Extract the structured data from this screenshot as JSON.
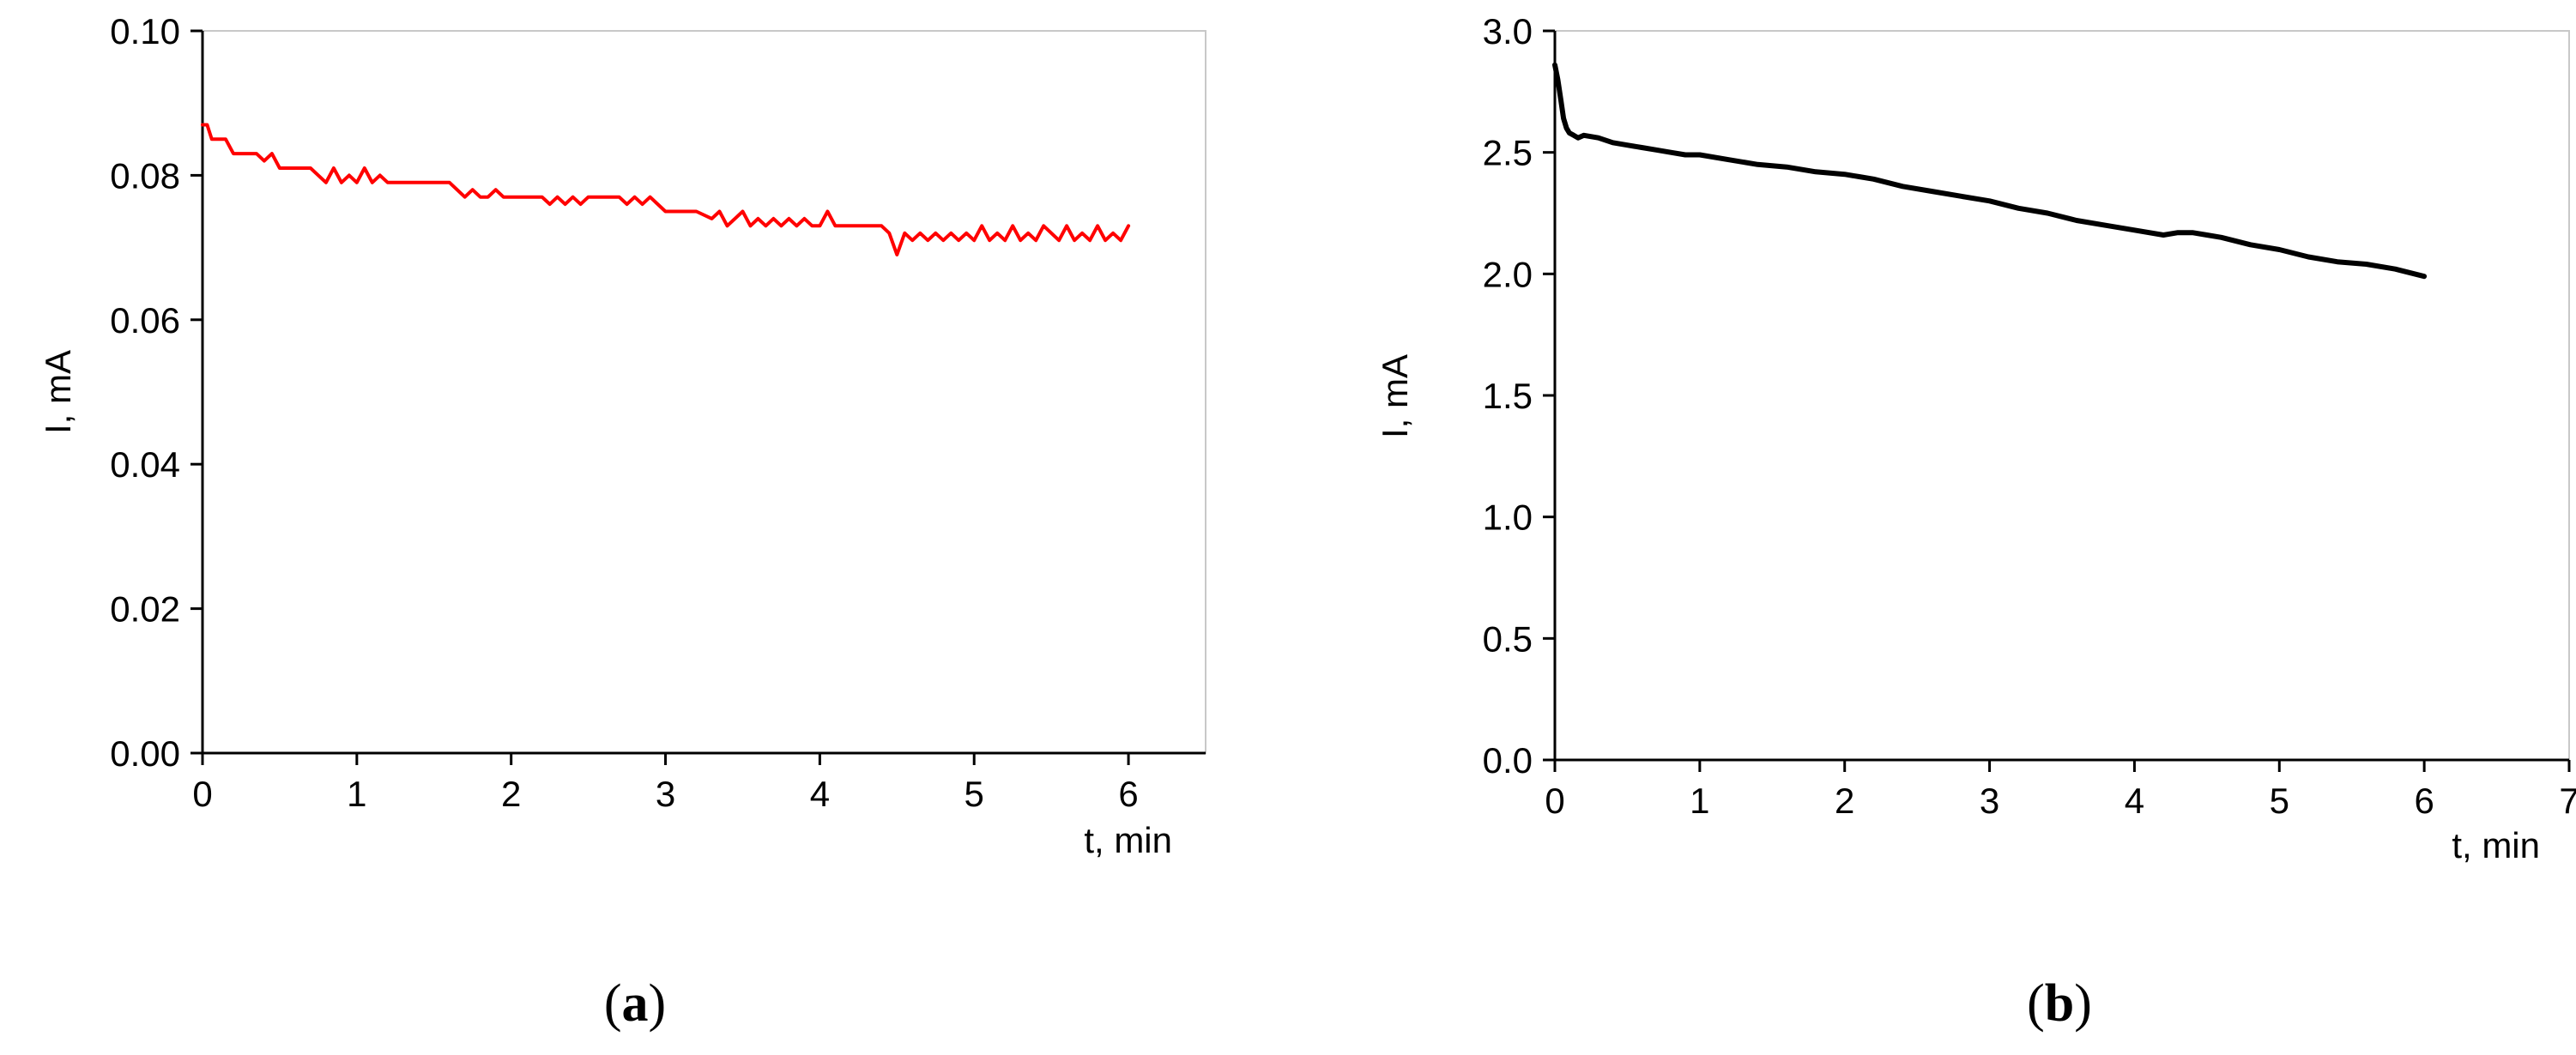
{
  "chart_data": [
    {
      "type": "line",
      "panel_label_open": "(",
      "panel_label_letter": "a",
      "panel_label_close": ")",
      "xlabel": "t, min",
      "ylabel": "I, mA",
      "xlim": [
        0,
        6.5
      ],
      "ylim": [
        0,
        0.1
      ],
      "xticks": [
        0,
        1,
        2,
        3,
        4,
        5,
        6
      ],
      "yticks": [
        0.0,
        0.02,
        0.04,
        0.06,
        0.08,
        0.1
      ],
      "xtick_labels": [
        "0",
        "1",
        "2",
        "3",
        "4",
        "5",
        "6"
      ],
      "ytick_labels": [
        "0.00",
        "0.02",
        "0.04",
        "0.06",
        "0.08",
        "0.10"
      ],
      "grid": false,
      "series": [
        {
          "color": "#ff0000",
          "x": [
            0.0,
            0.03,
            0.06,
            0.1,
            0.15,
            0.2,
            0.25,
            0.3,
            0.35,
            0.4,
            0.45,
            0.5,
            0.55,
            0.6,
            0.7,
            0.75,
            0.8,
            0.85,
            0.9,
            0.95,
            1.0,
            1.05,
            1.1,
            1.15,
            1.2,
            1.3,
            1.4,
            1.5,
            1.6,
            1.65,
            1.7,
            1.75,
            1.8,
            1.85,
            1.9,
            1.95,
            2.0,
            2.1,
            2.2,
            2.25,
            2.3,
            2.35,
            2.4,
            2.45,
            2.5,
            2.6,
            2.7,
            2.75,
            2.8,
            2.85,
            2.9,
            3.0,
            3.1,
            3.2,
            3.3,
            3.35,
            3.4,
            3.45,
            3.5,
            3.55,
            3.6,
            3.65,
            3.7,
            3.75,
            3.8,
            3.85,
            3.9,
            3.95,
            4.0,
            4.05,
            4.1,
            4.2,
            4.3,
            4.4,
            4.45,
            4.5,
            4.55,
            4.6,
            4.65,
            4.7,
            4.75,
            4.8,
            4.85,
            4.9,
            4.95,
            5.0,
            5.05,
            5.1,
            5.15,
            5.2,
            5.25,
            5.3,
            5.35,
            5.4,
            5.45,
            5.5,
            5.55,
            5.6,
            5.65,
            5.7,
            5.75,
            5.8,
            5.85,
            5.9,
            5.95,
            6.0
          ],
          "y": [
            0.087,
            0.087,
            0.085,
            0.085,
            0.085,
            0.083,
            0.083,
            0.083,
            0.083,
            0.082,
            0.083,
            0.081,
            0.081,
            0.081,
            0.081,
            0.08,
            0.079,
            0.081,
            0.079,
            0.08,
            0.079,
            0.081,
            0.079,
            0.08,
            0.079,
            0.079,
            0.079,
            0.079,
            0.079,
            0.078,
            0.077,
            0.078,
            0.077,
            0.077,
            0.078,
            0.077,
            0.077,
            0.077,
            0.077,
            0.076,
            0.077,
            0.076,
            0.077,
            0.076,
            0.077,
            0.077,
            0.077,
            0.076,
            0.077,
            0.076,
            0.077,
            0.075,
            0.075,
            0.075,
            0.074,
            0.075,
            0.073,
            0.074,
            0.075,
            0.073,
            0.074,
            0.073,
            0.074,
            0.073,
            0.074,
            0.073,
            0.074,
            0.073,
            0.073,
            0.075,
            0.073,
            0.073,
            0.073,
            0.073,
            0.072,
            0.069,
            0.072,
            0.071,
            0.072,
            0.071,
            0.072,
            0.071,
            0.072,
            0.071,
            0.072,
            0.071,
            0.073,
            0.071,
            0.072,
            0.071,
            0.073,
            0.071,
            0.072,
            0.071,
            0.073,
            0.072,
            0.071,
            0.073,
            0.071,
            0.072,
            0.071,
            0.073,
            0.071,
            0.072,
            0.071,
            0.073
          ]
        }
      ]
    },
    {
      "type": "line",
      "panel_label_open": "(",
      "panel_label_letter": "b",
      "panel_label_close": ")",
      "xlabel": "t, min",
      "ylabel": "I, mA",
      "xlim": [
        0,
        7
      ],
      "ylim": [
        0,
        3.0
      ],
      "xticks": [
        0,
        1,
        2,
        3,
        4,
        5,
        6,
        7
      ],
      "yticks": [
        0.0,
        0.5,
        1.0,
        1.5,
        2.0,
        2.5,
        3.0
      ],
      "xtick_labels": [
        "0",
        "1",
        "2",
        "3",
        "4",
        "5",
        "6",
        "7"
      ],
      "ytick_labels": [
        "0.0",
        "0.5",
        "1.0",
        "1.5",
        "2.0",
        "2.5",
        "3.0"
      ],
      "grid": false,
      "series": [
        {
          "color": "#000000",
          "x": [
            0.0,
            0.02,
            0.04,
            0.06,
            0.08,
            0.1,
            0.13,
            0.16,
            0.2,
            0.3,
            0.4,
            0.5,
            0.6,
            0.7,
            0.8,
            0.9,
            1.0,
            1.2,
            1.4,
            1.6,
            1.8,
            2.0,
            2.1,
            2.2,
            2.4,
            2.6,
            2.8,
            3.0,
            3.2,
            3.4,
            3.6,
            3.8,
            4.0,
            4.2,
            4.3,
            4.4,
            4.5,
            4.6,
            4.8,
            5.0,
            5.2,
            5.4,
            5.6,
            5.8,
            6.0
          ],
          "y": [
            2.86,
            2.8,
            2.72,
            2.64,
            2.6,
            2.58,
            2.57,
            2.56,
            2.57,
            2.56,
            2.54,
            2.53,
            2.52,
            2.51,
            2.5,
            2.49,
            2.49,
            2.47,
            2.45,
            2.44,
            2.42,
            2.41,
            2.4,
            2.39,
            2.36,
            2.34,
            2.32,
            2.3,
            2.27,
            2.25,
            2.22,
            2.2,
            2.18,
            2.16,
            2.17,
            2.17,
            2.16,
            2.15,
            2.12,
            2.1,
            2.07,
            2.05,
            2.04,
            2.02,
            1.99
          ]
        }
      ]
    }
  ]
}
